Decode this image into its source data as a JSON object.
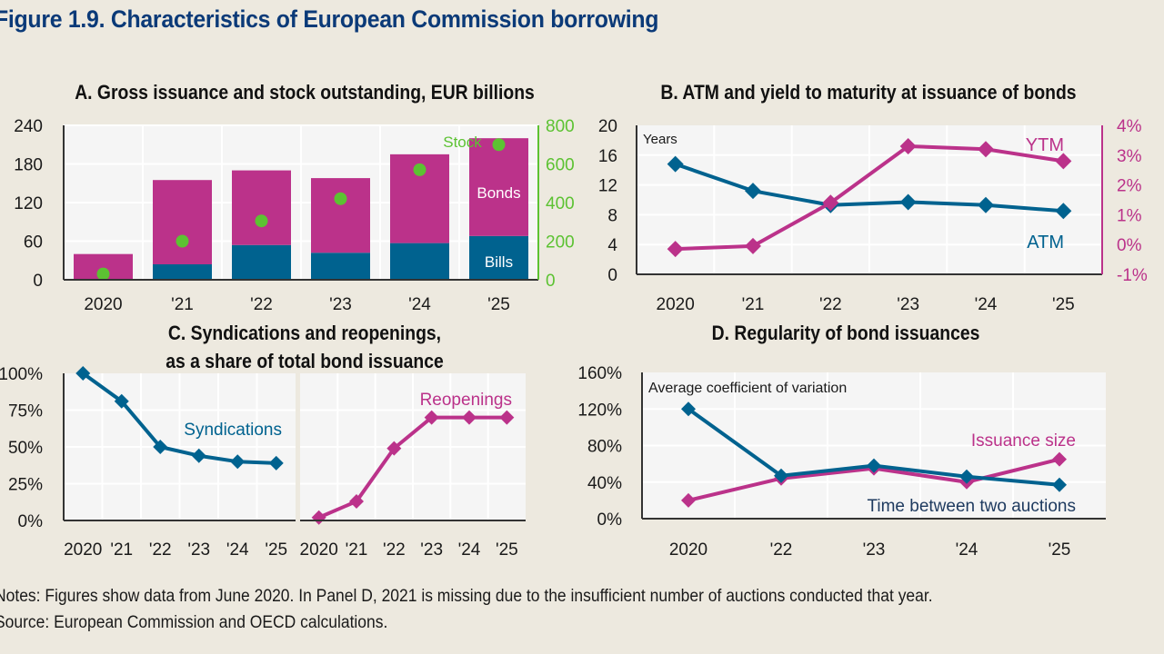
{
  "figure": {
    "title": "Figure 1.9. Characteristics of European Commission borrowing",
    "notes": "Notes: Figures show data from June 2020. In Panel D, 2021 is missing due to the insufficient number of auctions conducted that year.",
    "source": "Source: European Commission and OECD calculations."
  },
  "colors": {
    "background": "#ede9df",
    "plot_bg": "#f5f5f5",
    "blue": "#00628f",
    "magenta": "#bb328a",
    "green": "#5cc232",
    "axis": "#333333"
  },
  "chart_data": [
    {
      "id": "A",
      "type": "bar",
      "title": "A. Gross issuance and stock outstanding, EUR billions",
      "categories": [
        "2020",
        "'21",
        "'22",
        "'23",
        "'24",
        "'25"
      ],
      "stacked": true,
      "series": [
        {
          "name": "Bills",
          "axis": "left",
          "values": [
            0,
            24,
            54,
            42,
            57,
            68
          ]
        },
        {
          "name": "Bonds",
          "axis": "left",
          "values": [
            40,
            131,
            116,
            116,
            138,
            152
          ]
        },
        {
          "name": "Stock",
          "axis": "right",
          "kind": "scatter",
          "values": [
            30,
            200,
            305,
            420,
            570,
            700
          ]
        }
      ],
      "ylim": [
        0,
        240
      ],
      "yticks": [
        "0",
        "60",
        "120",
        "180",
        "240"
      ],
      "y2lim": [
        0,
        800
      ],
      "y2ticks": [
        "0",
        "200",
        "400",
        "600",
        "800"
      ],
      "labels": {
        "stock": "Stock",
        "bonds": "Bonds",
        "bills": "Bills"
      },
      "grid": true
    },
    {
      "id": "B",
      "type": "line",
      "title": "B. ATM and yield to maturity at issuance of bonds",
      "categories": [
        "2020",
        "'21",
        "'22",
        "'23",
        "'24",
        "'25"
      ],
      "series": [
        {
          "name": "ATM",
          "axis": "left",
          "values": [
            14.8,
            11.2,
            9.3,
            9.7,
            9.3,
            8.5
          ]
        },
        {
          "name": "YTM",
          "axis": "right",
          "values": [
            -0.15,
            -0.05,
            1.4,
            3.3,
            3.2,
            2.8
          ]
        }
      ],
      "ylabel": "Years",
      "ylim": [
        0,
        20
      ],
      "yticks": [
        "0",
        "4",
        "8",
        "12",
        "16",
        "20"
      ],
      "y2lim": [
        -1,
        4
      ],
      "y2ticks": [
        "-1%",
        "0%",
        "1%",
        "2%",
        "3%",
        "4%"
      ],
      "grid": true
    },
    {
      "id": "C",
      "type": "line",
      "title_line1": "C. Syndications and reopenings,",
      "title_line2": "as a share of total bond issuance",
      "categories": [
        "2020",
        "'21",
        "'22",
        "'23",
        "'24",
        "'25"
      ],
      "series": [
        {
          "name": "Syndications",
          "subplot": "left",
          "values": [
            100,
            81,
            50,
            44,
            40,
            39
          ]
        },
        {
          "name": "Reopenings",
          "subplot": "right",
          "values": [
            2,
            13,
            49,
            70,
            70,
            70
          ]
        }
      ],
      "ylim": [
        0,
        100
      ],
      "yticks": [
        "0%",
        "25%",
        "50%",
        "75%",
        "100%"
      ],
      "grid": true
    },
    {
      "id": "D",
      "type": "line",
      "title": "D. Regularity of bond issuances",
      "categories": [
        "2020",
        "'22",
        "'23",
        "'24",
        "'25"
      ],
      "series": [
        {
          "name": "Time between two auctions",
          "values": [
            120,
            47,
            58,
            46,
            37
          ]
        },
        {
          "name": "Issuance size",
          "values": [
            20,
            44,
            55,
            40,
            65
          ]
        }
      ],
      "ylabel": "Average coefficient of variation",
      "ylim": [
        0,
        160
      ],
      "yticks": [
        "0%",
        "40%",
        "80%",
        "120%",
        "160%"
      ],
      "grid": true
    }
  ]
}
